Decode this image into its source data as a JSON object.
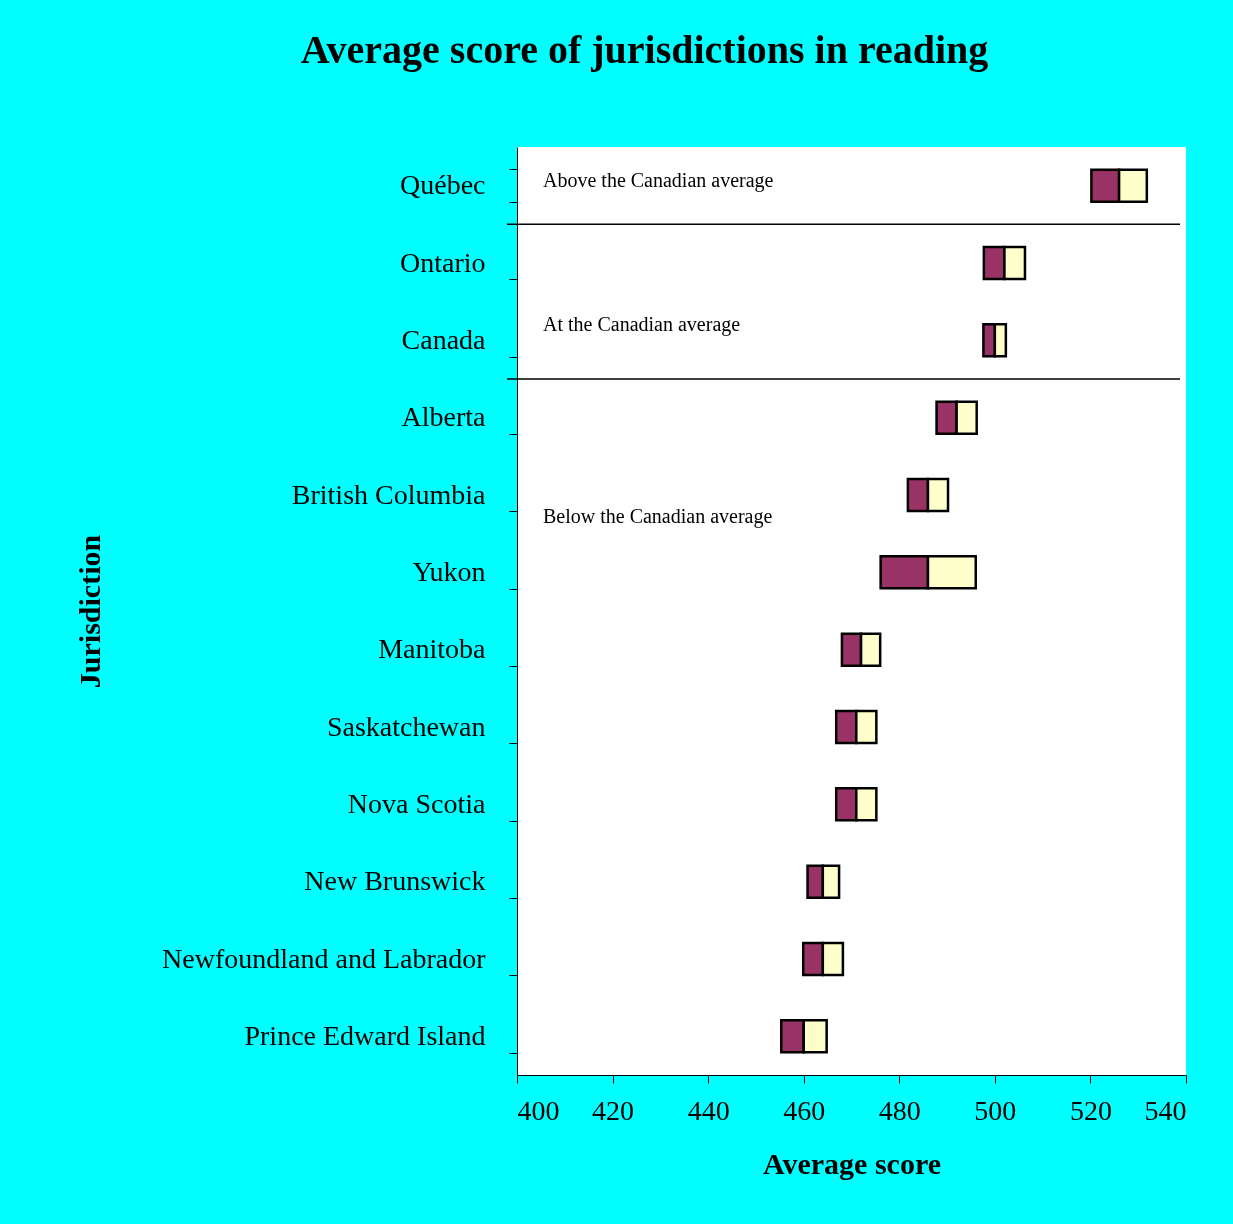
{
  "chart_data": {
    "type": "bar",
    "orientation": "horizontal",
    "legend": false,
    "title": "Average score of jurisdictions in reading",
    "xlabel": "Average score",
    "ylabel": "Jurisdiction",
    "categories": [
      "Québec",
      "Ontario",
      "Canada",
      "Alberta",
      "British Columbia",
      "Yukon",
      "Manitoba",
      "Saskatchewan",
      "Nova Scotia",
      "New Brunswick",
      "Newfoundland and Labrador",
      "Prince Edward Island"
    ],
    "series": [
      {
        "color": "#993366",
        "base": [
          520.2,
          497.7,
          497.6,
          487.8,
          481.8,
          476.1,
          468.0,
          466.8,
          466.8,
          460.8,
          459.9,
          455.3
        ],
        "values": [
          5.8,
          4.3,
          2.4,
          4.2,
          4.2,
          9.9,
          4.0,
          4.2,
          4.2,
          3.2,
          4.1,
          4.7
        ]
      },
      {
        "color": "#ffffcc",
        "base": [
          526.0,
          502.0,
          500.0,
          492.0,
          486.0,
          486.0,
          472.0,
          471.0,
          471.0,
          464.0,
          464.0,
          460.0
        ],
        "values": [
          5.8,
          4.3,
          2.3,
          4.2,
          4.2,
          10.0,
          4.0,
          4.2,
          4.2,
          3.4,
          4.2,
          4.8
        ]
      }
    ],
    "xlim": [
      400,
      540
    ],
    "xticks": [
      400,
      420,
      440,
      460,
      480,
      500,
      520,
      540
    ],
    "annotations": [
      "Above the Canadian average",
      "At the Canadian average",
      "Below the Canadian average"
    ]
  }
}
